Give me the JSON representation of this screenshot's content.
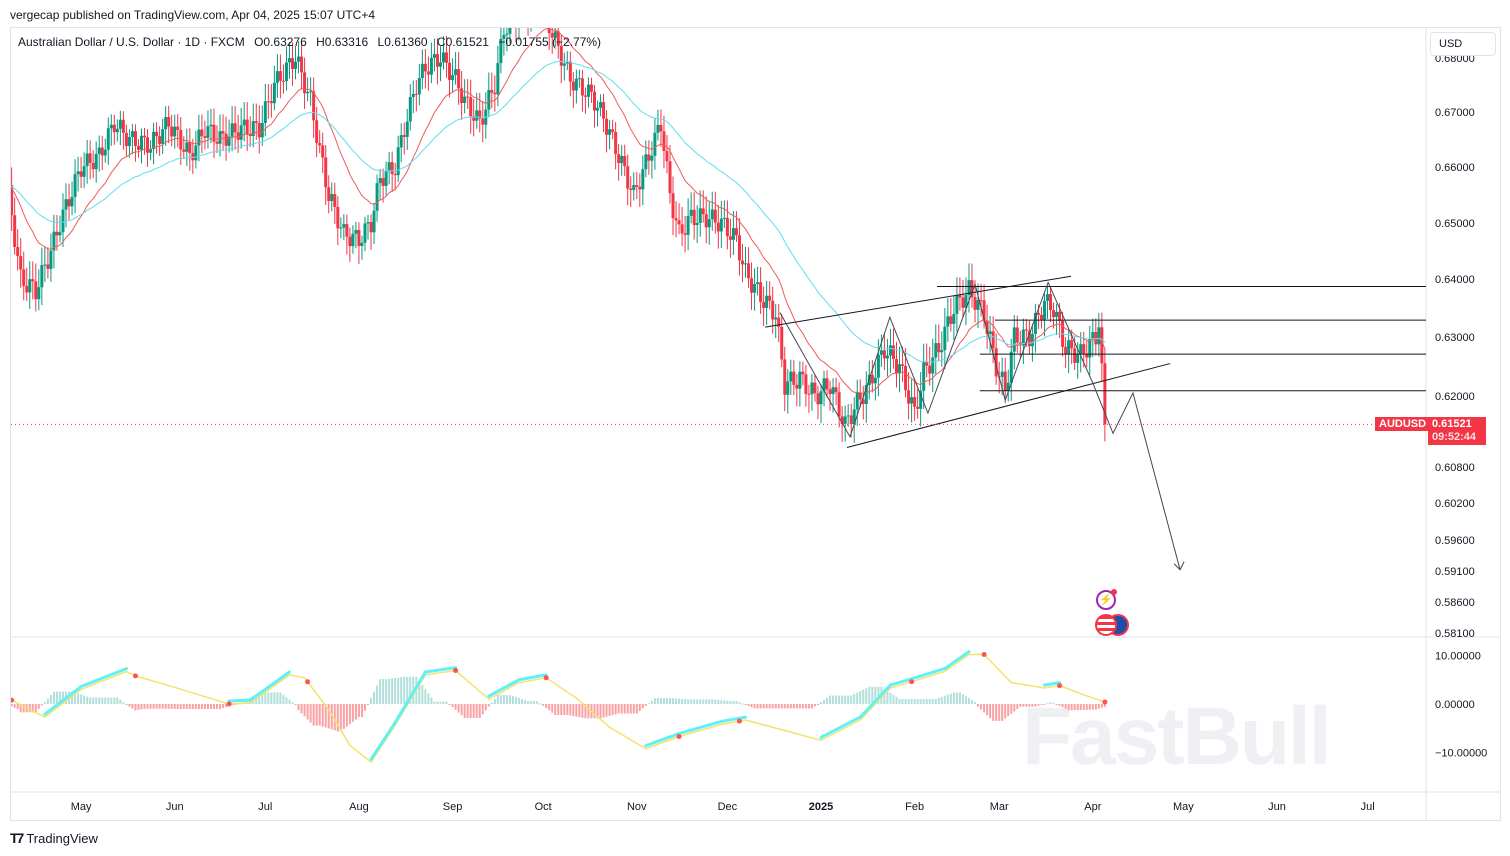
{
  "header": {
    "published": "vergecap published on TradingView.com, Apr 04, 2025 15:07 UTC+4"
  },
  "legend": {
    "symbol": "Australian Dollar / U.S. Dollar · 1D · FXCM",
    "open": "O0.63276",
    "high": "H0.63316",
    "low": "L0.61360",
    "close": "C0.61521",
    "change": "−0.01755 (−2.77%)"
  },
  "currency_button": "USD",
  "last_price": {
    "symbol": "AUDUSD",
    "price": "0.61521",
    "countdown": "09:52:44",
    "value": 0.61521
  },
  "watermark": "FastBull",
  "footer": {
    "brand": "TradingView"
  },
  "colors": {
    "up": "#089981",
    "down": "#f23645",
    "ema_fast": "#f05a5a",
    "ema_slow": "#5ce0ee",
    "osc_signal": "#f5e26b",
    "osc_main": "#5ff0f8"
  },
  "chart_data": {
    "type": "candlestick",
    "title": "Australian Dollar / U.S. Dollar · 1D · FXCM",
    "x_unit": "days from 2025-01-01",
    "price_ticks": [
      "0.67000",
      "0.66000",
      "0.65000",
      "0.64000",
      "0.63000",
      "0.62000",
      "0.60800",
      "0.60200",
      "0.59600",
      "0.59100",
      "0.58600",
      "0.58100"
    ],
    "price_tick_values": [
      0.67,
      0.66,
      0.65,
      0.64,
      0.63,
      0.62,
      0.608,
      0.602,
      0.596,
      0.591,
      0.586,
      0.581
    ],
    "time_ticks": [
      {
        "label": "May",
        "d": -245
      },
      {
        "label": "Jun",
        "d": -214
      },
      {
        "label": "Jul",
        "d": -184
      },
      {
        "label": "Aug",
        "d": -153
      },
      {
        "label": "Sep",
        "d": -122
      },
      {
        "label": "Oct",
        "d": -92
      },
      {
        "label": "Nov",
        "d": -61
      },
      {
        "label": "Dec",
        "d": -31
      },
      {
        "label": "2025",
        "d": 0
      },
      {
        "label": "Feb",
        "d": 31
      },
      {
        "label": "Mar",
        "d": 59
      },
      {
        "label": "Apr",
        "d": 90
      },
      {
        "label": "May",
        "d": 120
      },
      {
        "label": "Jun",
        "d": 151
      },
      {
        "label": "Jul",
        "d": 181
      }
    ],
    "close_anchors": [
      [
        -269,
        0.655
      ],
      [
        -265,
        0.64
      ],
      [
        -260,
        0.638
      ],
      [
        -255,
        0.645
      ],
      [
        -252,
        0.65
      ],
      [
        -245,
        0.66
      ],
      [
        -239,
        0.662
      ],
      [
        -234,
        0.668
      ],
      [
        -229,
        0.665
      ],
      [
        -222,
        0.664
      ],
      [
        -216,
        0.668
      ],
      [
        -209,
        0.662
      ],
      [
        -204,
        0.667
      ],
      [
        -199,
        0.665
      ],
      [
        -192,
        0.667
      ],
      [
        -186,
        0.667
      ],
      [
        -181,
        0.675
      ],
      [
        -174,
        0.68
      ],
      [
        -169,
        0.672
      ],
      [
        -166,
        0.663
      ],
      [
        -163,
        0.655
      ],
      [
        -158,
        0.648
      ],
      [
        -153,
        0.647
      ],
      [
        -149,
        0.65
      ],
      [
        -146,
        0.658
      ],
      [
        -141,
        0.66
      ],
      [
        -138,
        0.667
      ],
      [
        -134,
        0.675
      ],
      [
        -131,
        0.678
      ],
      [
        -126,
        0.68
      ],
      [
        -121,
        0.676
      ],
      [
        -118,
        0.672
      ],
      [
        -113,
        0.668
      ],
      [
        -108,
        0.675
      ],
      [
        -105,
        0.685
      ],
      [
        -100,
        0.688
      ],
      [
        -93,
        0.69
      ],
      [
        -88,
        0.683
      ],
      [
        -83,
        0.676
      ],
      [
        -76,
        0.673
      ],
      [
        -72,
        0.669
      ],
      [
        -67,
        0.662
      ],
      [
        -62,
        0.655
      ],
      [
        -57,
        0.662
      ],
      [
        -53,
        0.668
      ],
      [
        -50,
        0.655
      ],
      [
        -47,
        0.648
      ],
      [
        -43,
        0.651
      ],
      [
        -38,
        0.651
      ],
      [
        -33,
        0.65
      ],
      [
        -28,
        0.647
      ],
      [
        -25,
        0.641
      ],
      [
        -20,
        0.637
      ],
      [
        -15,
        0.634
      ],
      [
        -12,
        0.622
      ],
      [
        -7,
        0.623
      ],
      [
        -2,
        0.62
      ],
      [
        3,
        0.622
      ],
      [
        8,
        0.615
      ],
      [
        11,
        0.618
      ],
      [
        16,
        0.622
      ],
      [
        21,
        0.628
      ],
      [
        26,
        0.625
      ],
      [
        31,
        0.617
      ],
      [
        34,
        0.624
      ],
      [
        39,
        0.628
      ],
      [
        44,
        0.635
      ],
      [
        49,
        0.638
      ],
      [
        54,
        0.634
      ],
      [
        58,
        0.625
      ],
      [
        61,
        0.621
      ],
      [
        64,
        0.63
      ],
      [
        69,
        0.63
      ],
      [
        74,
        0.636
      ],
      [
        77,
        0.635
      ],
      [
        81,
        0.628
      ],
      [
        86,
        0.627
      ],
      [
        91,
        0.63
      ],
      [
        92,
        0.6328
      ],
      [
        94,
        0.61521
      ]
    ],
    "ema_periods": [
      20,
      50
    ],
    "drawings": {
      "channel_upper": [
        [
          -18.5,
          0.6317
        ],
        [
          82.8,
          0.6405
        ]
      ],
      "channel_lower": [
        [
          8.6,
          0.6113
        ],
        [
          115.6,
          0.6255
        ]
      ],
      "levels": [
        [
          38.4,
          0.6387
        ],
        [
          57.6,
          0.6329
        ],
        [
          52.6,
          0.6271
        ],
        [
          52.6,
          0.6209
        ]
      ],
      "projection_path": [
        [
          -13.6,
          0.6342
        ],
        [
          9.6,
          0.6131
        ],
        [
          22.8,
          0.6334
        ],
        [
          35.4,
          0.6171
        ],
        [
          51,
          0.6391
        ],
        [
          61,
          0.6193
        ],
        [
          75.2,
          0.6394
        ],
        [
          90,
          0.6222
        ],
        [
          96.7,
          0.6137
        ],
        [
          103.3,
          0.6205
        ],
        [
          118.9,
          0.5912
        ]
      ]
    },
    "oscillator": {
      "ticks": [
        "10.00000",
        "0.00000",
        "−10.00000"
      ],
      "tick_values": [
        10,
        0,
        -10
      ],
      "signal": [
        [
          -268,
          0.8
        ],
        [
          -257,
          -2.7
        ],
        [
          -245,
          3
        ],
        [
          -230,
          6.7
        ],
        [
          -227,
          5.8
        ],
        [
          -216,
          3.8
        ],
        [
          -206,
          1.9
        ],
        [
          -196,
          0
        ],
        [
          -189,
          0.2
        ],
        [
          -176,
          6
        ],
        [
          -171,
          5.4
        ],
        [
          -163,
          -1.2
        ],
        [
          -156,
          -8.5
        ],
        [
          -149,
          -12
        ],
        [
          -141,
          -4.4
        ],
        [
          -131,
          6
        ],
        [
          -121,
          6.9
        ],
        [
          -110,
          1
        ],
        [
          -100,
          4.4
        ],
        [
          -91,
          5.4
        ],
        [
          -81,
          1.2
        ],
        [
          -70,
          -4.8
        ],
        [
          -58,
          -9.2
        ],
        [
          -47,
          -6.7
        ],
        [
          -33,
          -4.2
        ],
        [
          -25,
          -3.3
        ],
        [
          -10,
          -5.8
        ],
        [
          0,
          -7.5
        ],
        [
          13,
          -3.3
        ],
        [
          23,
          3.3
        ],
        [
          30,
          4.6
        ],
        [
          41,
          6.7
        ],
        [
          49,
          10.2
        ],
        [
          54,
          10.2
        ],
        [
          63,
          4.4
        ],
        [
          74,
          3.3
        ],
        [
          79,
          3.8
        ],
        [
          87,
          1.9
        ],
        [
          94,
          0.4
        ]
      ],
      "cross_markers": [
        -268,
        -227,
        -196,
        -170,
        -121,
        -91,
        -47,
        -27,
        30,
        54,
        79,
        94
      ]
    }
  }
}
